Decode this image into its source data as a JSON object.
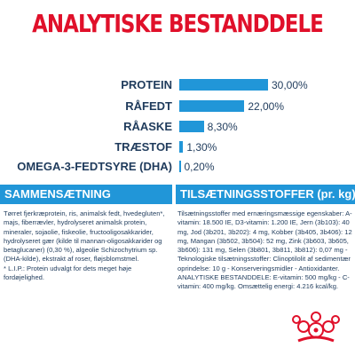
{
  "title": "ANALYTISKE BESTANDDELE",
  "chart_data": {
    "type": "bar",
    "categories": [
      "PROTEIN",
      "RÅFEDT",
      "RÅASKE",
      "TRÆSTOF",
      "OMEGA-3-FEDTSYRE (DHA)"
    ],
    "values": [
      30.0,
      22.0,
      8.3,
      1.3,
      0.2
    ],
    "value_labels": [
      "30,00%",
      "22,00%",
      "8,30%",
      "1,30%",
      "0,20%"
    ],
    "xlim": [
      0,
      30
    ],
    "bar_color": "#2196d8"
  },
  "composition": {
    "header": "SAMMENSÆTNING",
    "text": "Tørret fjerkræprotein, ris, animalsk fedt, hvedegluten*, majs, fiberrævler, hydrolyseret animalsk protein, mineraler, sojaolie, fiskeolie, fructooligosakkarider, hydrolyseret gær (kilde til mannan-oligosakkarider og betaglucaner) (0,30 %), algeolie Schizochytrium sp. (DHA-kilde), ekstrakt af roser, fløjsblomstmel.",
    "note": "* L.I.P.: Protein udvalgt for dets meget høje fordøjelighed."
  },
  "additives": {
    "header": "TILSÆTNINGSSTOFFER (pr. kg)",
    "text": "Tilsætningsstoffer med ernæringsmæssige egenskaber: A-vitamin: 18.500 IE, D3-vitamin: 1.200 IE, Jern (3b103): 40 mg, Jod (3b201, 3b202): 4 mg, Kobber (3b405, 3b406): 12 mg, Mangan (3b502, 3b504): 52 mg, Zink (3b603, 3b605, 3b606): 131 mg, Selen (3b801, 3b811, 3b812): 0,07 mg - Teknologiske tilsætningsstoffer: Clinoptilolit af sedimentær oprindelse: 10 g - Konserveringsmidler - Antioxidanter. ANALYTISKE BESTANDDELE: E-vitamin: 500 mg/kg - C-vitamin: 400 mg/kg. Omsættelig energi: 4.216 kcal/kg."
  },
  "colors": {
    "title_red": "#e0102a",
    "accent_blue": "#2196d8",
    "text_navy": "#1f3b5c"
  },
  "logo_icon": "royal-canin-crown-logo"
}
